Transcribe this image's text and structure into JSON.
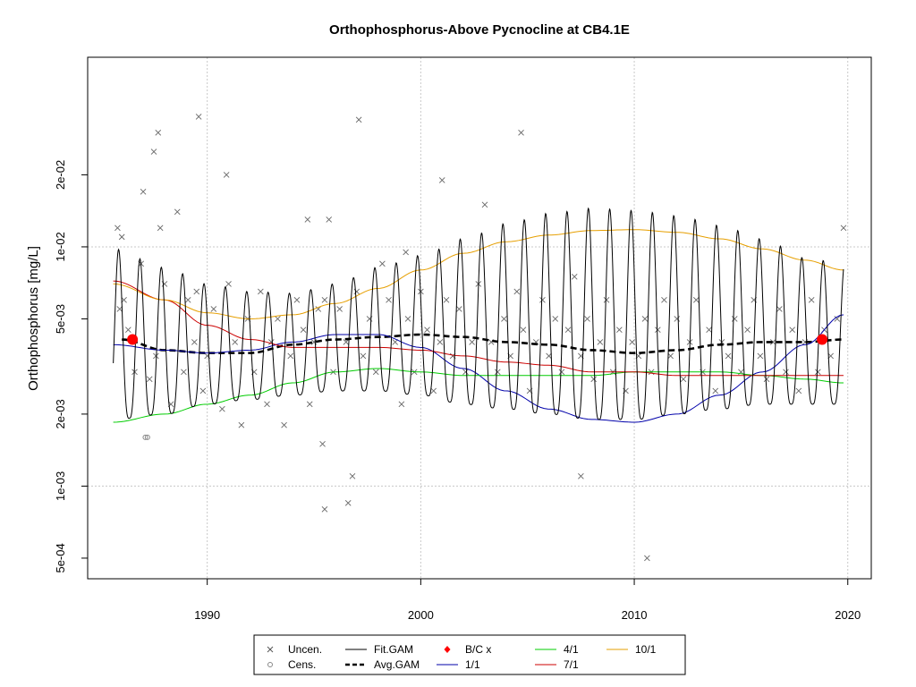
{
  "chart_data": {
    "type": "line",
    "title": "Orthophosphorus-Above Pycnocline at CB4.1E",
    "xlabel": "",
    "ylabel": "Orthophosphorus [mg/L]",
    "x_scale": "linear",
    "y_scale": "log",
    "xlim": [
      1984.4,
      2021.1
    ],
    "ylim": [
      0.00041,
      0.062
    ],
    "x_ticks": [
      1990,
      2000,
      2010,
      2020
    ],
    "x_tick_labels": [
      "1990",
      "2000",
      "2010",
      "2020"
    ],
    "y_ticks": [
      0.0005,
      0.001,
      0.002,
      0.005,
      0.01,
      0.02
    ],
    "y_tick_labels": [
      "5e-04",
      "1e-03",
      "2e-03",
      "5e-03",
      "1e-02",
      "2e-02"
    ],
    "grid": true,
    "legend_placement": "bottom",
    "legend": [
      {
        "label": "Uncen.",
        "kind": "x-marker",
        "color": "#555555"
      },
      {
        "label": "Cens.",
        "kind": "circle-marker",
        "color": "#888888"
      },
      {
        "label": "Fit.GAM",
        "kind": "line",
        "color": "#000000"
      },
      {
        "label": "Avg.GAM",
        "kind": "dashed",
        "color": "#000000"
      },
      {
        "label": "B/C x",
        "kind": "diamond",
        "color": "#ff0000"
      },
      {
        "label": "1/1",
        "kind": "line",
        "color": "#0000aa"
      },
      {
        "label": "4/1",
        "kind": "line",
        "color": "#00cc00"
      },
      {
        "label": "7/1",
        "kind": "line",
        "color": "#cc0000"
      },
      {
        "label": "10/1",
        "kind": "line",
        "color": "#e69f00"
      }
    ],
    "series": [
      {
        "name": "Avg.GAM",
        "style": "dashed",
        "color": "#000000",
        "x": [
          1986.0,
          1988,
          1990,
          1992,
          1994,
          1996,
          1998,
          2000,
          2002,
          2004,
          2006,
          2008,
          2010,
          2012,
          2014,
          2016,
          2018,
          2019.8
        ],
        "y": [
          0.0041,
          0.0037,
          0.0036,
          0.0036,
          0.0039,
          0.0041,
          0.0042,
          0.0043,
          0.0042,
          0.004,
          0.0039,
          0.0037,
          0.0036,
          0.0037,
          0.0039,
          0.004,
          0.004,
          0.0041
        ]
      },
      {
        "name": "1/1",
        "style": "solid",
        "color": "#0000aa",
        "x": [
          1985.6,
          1988,
          1990,
          1992,
          1994,
          1996,
          1998,
          2000,
          2002,
          2004,
          2006,
          2008,
          2010,
          2012,
          2014,
          2016,
          2018,
          2019.8
        ],
        "y": [
          0.0039,
          0.0037,
          0.0036,
          0.0037,
          0.004,
          0.0043,
          0.0043,
          0.0038,
          0.0031,
          0.0025,
          0.0021,
          0.0019,
          0.00185,
          0.002,
          0.0024,
          0.003,
          0.0039,
          0.0052
        ]
      },
      {
        "name": "4/1",
        "style": "solid",
        "color": "#00cc00",
        "x": [
          1985.6,
          1988,
          1990,
          1992,
          1994,
          1996,
          1998,
          2000,
          2002,
          2004,
          2006,
          2008,
          2010,
          2012,
          2014,
          2016,
          2018,
          2019.8
        ],
        "y": [
          0.00185,
          0.002,
          0.0022,
          0.0024,
          0.0027,
          0.003,
          0.0031,
          0.003,
          0.0029,
          0.0029,
          0.0029,
          0.0029,
          0.003,
          0.003,
          0.003,
          0.0029,
          0.0028,
          0.0027
        ]
      },
      {
        "name": "7/1",
        "style": "solid",
        "color": "#cc0000",
        "x": [
          1985.6,
          1988,
          1990,
          1992,
          1994,
          1996,
          1998,
          2000,
          2002,
          2004,
          2006,
          2008,
          2010,
          2012,
          2014,
          2016,
          2018,
          2019.8
        ],
        "y": [
          0.0072,
          0.006,
          0.0047,
          0.0041,
          0.0038,
          0.0038,
          0.0038,
          0.0037,
          0.0035,
          0.0033,
          0.0032,
          0.003,
          0.003,
          0.0029,
          0.0029,
          0.0029,
          0.0029,
          0.0029
        ]
      },
      {
        "name": "10/1",
        "style": "solid",
        "color": "#e69f00",
        "x": [
          1985.6,
          1988,
          1990,
          1992,
          1994,
          1996,
          1998,
          2000,
          2002,
          2004,
          2006,
          2008,
          2010,
          2012,
          2014,
          2016,
          2018,
          2019.8
        ],
        "y": [
          0.007,
          0.006,
          0.0053,
          0.005,
          0.0052,
          0.0058,
          0.0067,
          0.008,
          0.0094,
          0.0105,
          0.0112,
          0.0117,
          0.0118,
          0.0115,
          0.0108,
          0.0098,
          0.0088,
          0.008
        ]
      },
      {
        "name": "Fit.GAM",
        "style": "seasonal",
        "color": "#000000",
        "x_start": 1985.6,
        "x_end": 2019.8,
        "peak_phase": 0.85,
        "base_x": [
          1985.6,
          1988,
          1990,
          1992,
          1994,
          1996,
          1998,
          2000,
          2002,
          2004,
          2006,
          2008,
          2010,
          2012,
          2014,
          2016,
          2018,
          2019.8
        ],
        "peak_y": [
          0.0098,
          0.0082,
          0.007,
          0.0065,
          0.0064,
          0.007,
          0.0082,
          0.0092,
          0.0108,
          0.0125,
          0.0138,
          0.0145,
          0.0142,
          0.0135,
          0.0123,
          0.0108,
          0.009,
          0.0085
        ],
        "trough_y": [
          0.0019,
          0.002,
          0.0022,
          0.0023,
          0.0024,
          0.0025,
          0.0025,
          0.0024,
          0.0022,
          0.0021,
          0.002,
          0.0019,
          0.0019,
          0.002,
          0.0021,
          0.0022,
          0.0022,
          0.0022
        ]
      }
    ],
    "bc_points": {
      "label": "B/C x",
      "color": "#ff0000",
      "x": [
        1986.5,
        2018.8
      ],
      "y": [
        0.0041,
        0.0041
      ]
    },
    "censored_points": {
      "x": [
        1987.1,
        1987.2
      ],
      "y": [
        0.0016,
        0.0016
      ]
    },
    "uncensored_points": {
      "x": [
        1985.8,
        1985.9,
        1986.0,
        1986.1,
        1986.3,
        1986.6,
        1986.9,
        1987.0,
        1987.3,
        1987.5,
        1987.6,
        1987.8,
        1988.0,
        1988.3,
        1988.6,
        1988.9,
        1989.1,
        1989.4,
        1989.5,
        1989.8,
        1990.0,
        1990.3,
        1990.7,
        1991.0,
        1991.3,
        1991.6,
        1991.9,
        1992.2,
        1992.5,
        1992.8,
        1993.0,
        1993.3,
        1993.6,
        1993.9,
        1994.2,
        1994.5,
        1994.8,
        1995.0,
        1995.2,
        1995.4,
        1995.5,
        1995.7,
        1995.9,
        1996.2,
        1996.5,
        1996.8,
        1997.0,
        1997.3,
        1997.6,
        1997.9,
        1998.2,
        1998.5,
        1998.8,
        1999.1,
        1999.4,
        1999.7,
        2000.0,
        2000.3,
        2000.6,
        2000.9,
        2001.2,
        2001.5,
        2001.8,
        2002.1,
        2002.4,
        2002.7,
        2003.0,
        2003.3,
        2003.6,
        2003.9,
        2004.2,
        2004.5,
        2004.8,
        2005.1,
        2005.4,
        2005.7,
        2006.0,
        2006.3,
        2006.6,
        2006.9,
        2007.2,
        2007.5,
        2007.8,
        2008.1,
        2008.4,
        2008.7,
        2009.0,
        2009.3,
        2009.6,
        2009.9,
        2010.2,
        2010.5,
        2010.8,
        2011.1,
        2011.4,
        2011.7,
        2012.0,
        2012.3,
        2012.6,
        2012.9,
        2013.2,
        2013.5,
        2013.8,
        2014.1,
        2014.4,
        2014.7,
        2015.0,
        2015.3,
        2015.6,
        2015.9,
        2016.2,
        2016.5,
        2016.8,
        2017.1,
        2017.4,
        2017.7,
        2018.0,
        2018.3,
        2018.6,
        2018.9,
        2019.2,
        2019.5,
        2019.8,
        1989.6,
        1997.1,
        1987.7,
        2010.6,
        1996.6,
        1995.5,
        2001.0,
        1994.7,
        1990.9,
        1999.3,
        2007.5,
        2004.7
      ],
      "y": [
        0.012,
        0.0055,
        0.011,
        0.006,
        0.0045,
        0.003,
        0.0085,
        0.017,
        0.0028,
        0.025,
        0.0035,
        0.012,
        0.007,
        0.0022,
        0.014,
        0.003,
        0.006,
        0.004,
        0.0065,
        0.0025,
        0.0035,
        0.0055,
        0.0021,
        0.007,
        0.004,
        0.0018,
        0.005,
        0.003,
        0.0065,
        0.0022,
        0.004,
        0.005,
        0.0018,
        0.0035,
        0.006,
        0.0045,
        0.0022,
        0.004,
        0.0055,
        0.0015,
        0.006,
        0.013,
        0.003,
        0.0055,
        0.004,
        0.0011,
        0.0065,
        0.0035,
        0.005,
        0.003,
        0.0085,
        0.006,
        0.004,
        0.0022,
        0.005,
        0.003,
        0.0065,
        0.0045,
        0.0025,
        0.004,
        0.006,
        0.0035,
        0.0055,
        0.003,
        0.004,
        0.007,
        0.015,
        0.004,
        0.003,
        0.005,
        0.0035,
        0.0065,
        0.0045,
        0.0025,
        0.004,
        0.006,
        0.0035,
        0.005,
        0.003,
        0.0045,
        0.0075,
        0.0035,
        0.005,
        0.0028,
        0.004,
        0.006,
        0.003,
        0.0045,
        0.0025,
        0.004,
        0.0035,
        0.005,
        0.003,
        0.0045,
        0.006,
        0.0035,
        0.005,
        0.0028,
        0.004,
        0.006,
        0.003,
        0.0045,
        0.0025,
        0.004,
        0.0035,
        0.005,
        0.003,
        0.0045,
        0.006,
        0.0035,
        0.0028,
        0.004,
        0.0055,
        0.003,
        0.0045,
        0.0025,
        0.004,
        0.006,
        0.003,
        0.0045,
        0.0035,
        0.005,
        0.012,
        0.035,
        0.034,
        0.03,
        0.0005,
        0.00085,
        0.0008,
        0.019,
        0.013,
        0.02,
        0.0095,
        0.0011,
        0.03
      ]
    }
  }
}
